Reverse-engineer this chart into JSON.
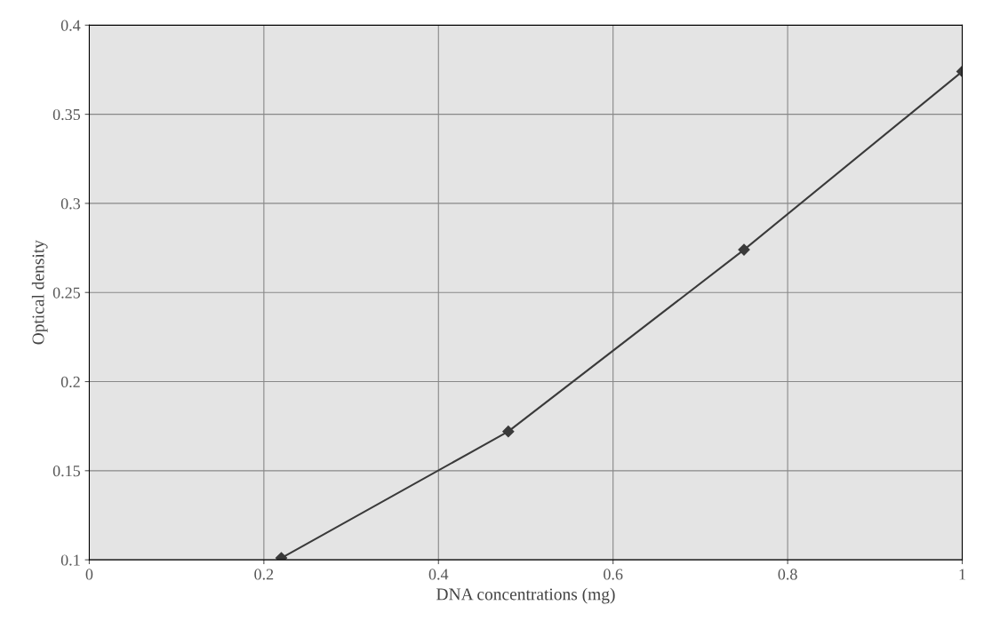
{
  "chart_data": {
    "type": "line",
    "xlabel": "DNA concentrations (mg)",
    "ylabel": "Optical density",
    "x": [
      0.22,
      0.48,
      0.75,
      1.0
    ],
    "series": [
      {
        "color": "#3a3a3a",
        "values": [
          0.101,
          0.172,
          0.274,
          0.374
        ]
      }
    ],
    "xlim": [
      0,
      1
    ],
    "xticks": [
      0,
      0.2,
      0.4,
      0.6,
      0.8,
      1
    ],
    "ylim": [
      0.1,
      0.4
    ],
    "yticks": [
      0.1,
      0.15,
      0.2,
      0.25,
      0.3,
      0.35,
      0.4
    ],
    "grid": true,
    "marker": "diamond",
    "line_style": "solid"
  }
}
